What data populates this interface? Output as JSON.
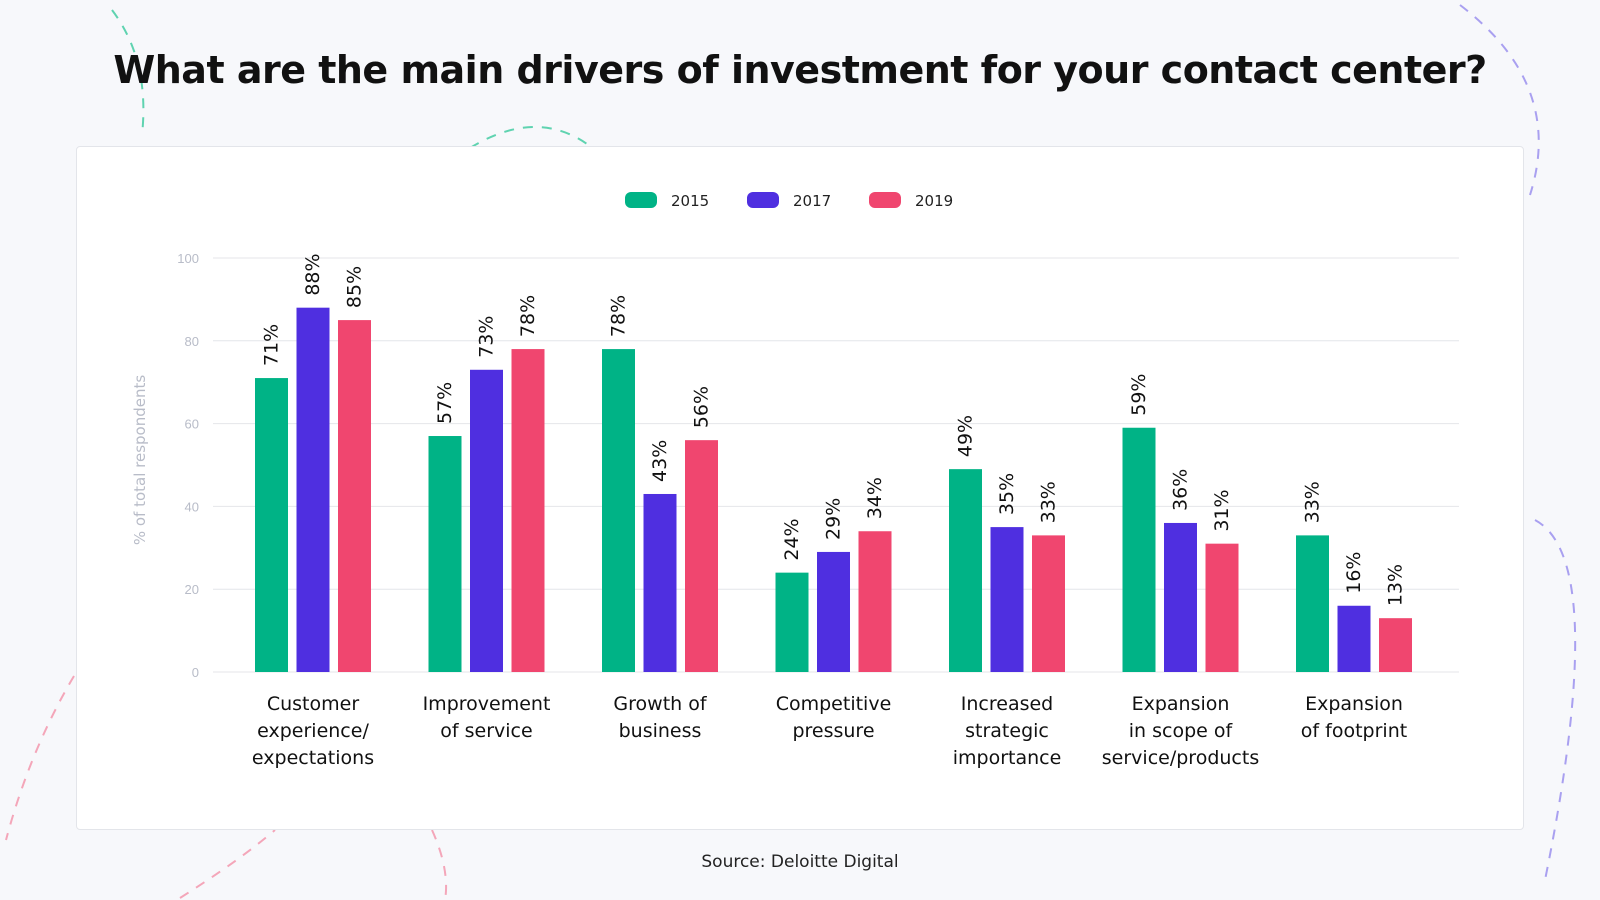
{
  "title": "What are the main drivers of investment for your contact center?",
  "source": "Source: Deloitte Digital",
  "colors": {
    "2015": "#00b386",
    "2017": "#4f2fe0",
    "2019": "#f0466f",
    "axis_label": "#b8bcc8",
    "gridline": "#e4e6ea",
    "category_label": "#111111",
    "value_label": "#111111"
  },
  "chart_data": {
    "type": "bar",
    "title": "What are the main drivers of investment for your contact center?",
    "ylabel": "% of total respondents",
    "xlabel": "",
    "ylim": [
      0,
      100
    ],
    "yticks": [
      0,
      20,
      40,
      60,
      80,
      100
    ],
    "grid": true,
    "legend_position": "top-center",
    "categories": [
      [
        "Customer",
        "experience/",
        "expectations"
      ],
      [
        "Improvement",
        "of service"
      ],
      [
        "Growth of",
        "business"
      ],
      [
        "Competitive",
        "pressure"
      ],
      [
        "Increased",
        "strategic",
        "importance"
      ],
      [
        "Expansion",
        "in scope of",
        "service/products"
      ],
      [
        "Expansion",
        "of footprint"
      ]
    ],
    "series": [
      {
        "name": "2015",
        "values": [
          71,
          57,
          78,
          24,
          49,
          59,
          33
        ],
        "labels": [
          "71%",
          "57%",
          "78%",
          "24%",
          "49%",
          "59%",
          "33%"
        ]
      },
      {
        "name": "2017",
        "values": [
          88,
          73,
          43,
          29,
          35,
          36,
          16
        ],
        "labels": [
          "88%",
          "73%",
          "43%",
          "29%",
          "35%",
          "36%",
          "16%"
        ]
      },
      {
        "name": "2019",
        "values": [
          85,
          78,
          56,
          34,
          33,
          31,
          13
        ],
        "labels": [
          "85%",
          "78%",
          "56%",
          "34%",
          "33%",
          "31%",
          "13%"
        ]
      }
    ]
  }
}
